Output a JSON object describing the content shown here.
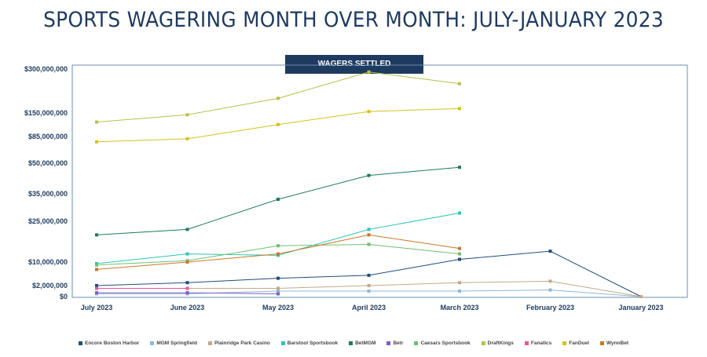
{
  "title": "SPORTS WAGERING MONTH OVER MONTH: JULY-JANUARY 2023",
  "banner": "WAGERS SETTLED",
  "chart_data": {
    "type": "line",
    "title": "SPORTS WAGERING MONTH OVER MONTH: JULY-JANUARY 2023",
    "subtitle": "WAGERS SETTLED",
    "categories": [
      "July 2023",
      "June 2023",
      "May 2023",
      "April 2023",
      "March 2023",
      "February 2023",
      "January 2023"
    ],
    "y_ticks": [
      {
        "value": 300000000,
        "label": "$300,000,000"
      },
      {
        "value": 150000000,
        "label": "$150,000,000"
      },
      {
        "value": 85000000,
        "label": "$85,000,000"
      },
      {
        "value": 50000000,
        "label": "$50,000,000"
      },
      {
        "value": 35000000,
        "label": "$35,000,000"
      },
      {
        "value": 25000000,
        "label": "$25,000,000"
      },
      {
        "value": 10000000,
        "label": "$10,000,000"
      },
      {
        "value": 2000000,
        "label": "$2,000,000"
      },
      {
        "value": 0,
        "label": "$0"
      }
    ],
    "series": [
      {
        "name": "Encore Boston Harbor",
        "color": "#1e4d78",
        "values": [
          2000000,
          3000000,
          4500000,
          5500000,
          11000000,
          14000000,
          0
        ]
      },
      {
        "name": "MGM Springfield",
        "color": "#8fb7d6",
        "values": [
          500000,
          500000,
          1000000,
          1000000,
          1000000,
          1200000,
          0
        ]
      },
      {
        "name": "Plainridge Park Casino",
        "color": "#c2a98a",
        "values": [
          1500000,
          1500000,
          1500000,
          2000000,
          3000000,
          3500000,
          0
        ]
      },
      {
        "name": "Barstool Sportsbook",
        "color": "#2ec4b6",
        "values": [
          9500000,
          13000000,
          12500000,
          22000000,
          28000000,
          null,
          null
        ]
      },
      {
        "name": "BetMGM",
        "color": "#1f7a5c",
        "values": [
          20000000,
          22000000,
          33000000,
          44000000,
          48000000,
          null,
          null
        ]
      },
      {
        "name": "Betr",
        "color": "#7b5fc6",
        "values": [
          700000,
          700000,
          500000,
          null,
          null,
          null,
          null
        ]
      },
      {
        "name": "Caesars Sportsbook",
        "color": "#6fbf73",
        "values": [
          9000000,
          10500000,
          16000000,
          16500000,
          13000000,
          null,
          null
        ]
      },
      {
        "name": "DraftKings",
        "color": "#b5c24a",
        "values": [
          125000000,
          145000000,
          200000000,
          290000000,
          250000000,
          null,
          null
        ]
      },
      {
        "name": "Fanatics",
        "color": "#e05a9a",
        "values": [
          1500000,
          1500000,
          null,
          null,
          null,
          null,
          null
        ]
      },
      {
        "name": "FanDuel",
        "color": "#d4c21a",
        "values": [
          78000000,
          82000000,
          118000000,
          155000000,
          165000000,
          null,
          null
        ]
      },
      {
        "name": "WynnBet",
        "color": "#c9782a",
        "values": [
          7500000,
          10000000,
          13000000,
          20000000,
          15000000,
          null,
          null
        ]
      }
    ]
  }
}
